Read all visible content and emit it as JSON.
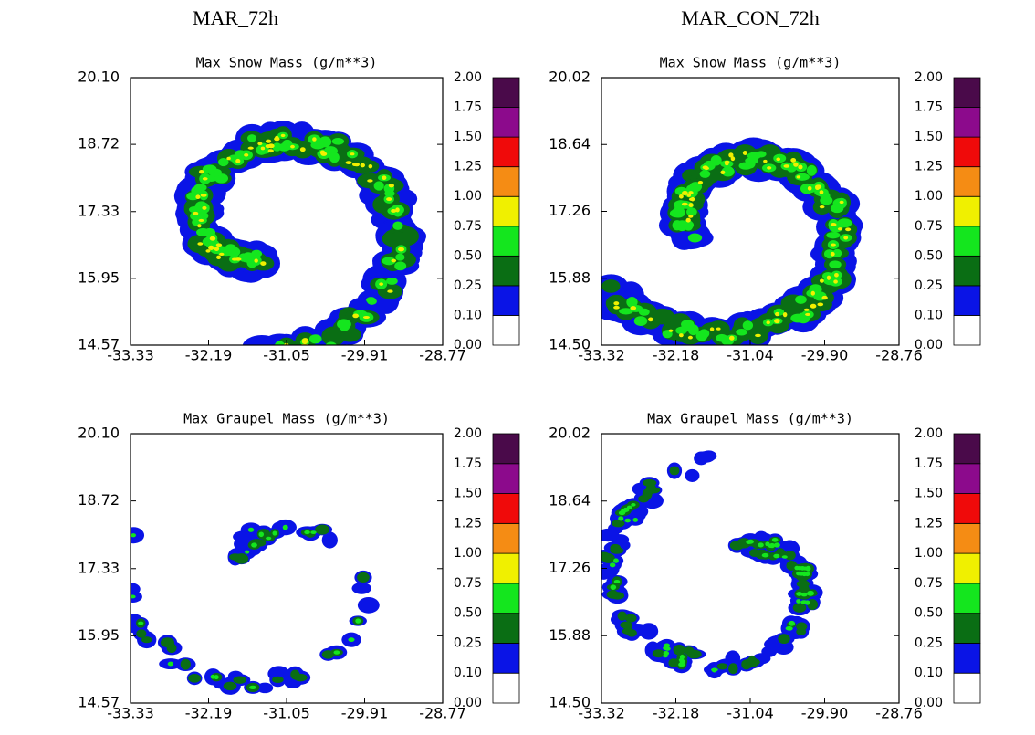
{
  "column_titles": [
    "MAR_72h",
    "MAR_CON_72h"
  ],
  "chart_data": [
    {
      "type": "contour",
      "title": "Max Snow Mass (g/m**3)",
      "xlim": [
        -33.33,
        -28.77
      ],
      "ylim": [
        14.57,
        20.1
      ],
      "xticks": [
        -33.33,
        -32.19,
        -31.05,
        -29.91,
        -28.77
      ],
      "yticks": [
        14.57,
        15.95,
        17.33,
        18.72,
        {
          "value": 20.1,
          "label": "20.10"
        }
      ],
      "colorbar": {
        "levels": [
          {
            "value": 0,
            "label": "0.00"
          },
          {
            "value": 0.1,
            "label": "0.10"
          },
          0.25,
          {
            "value": 0.5,
            "label": "0.50"
          },
          0.75,
          {
            "value": 1,
            "label": "1.00"
          },
          1.25,
          {
            "value": 1.5,
            "label": "1.50"
          },
          1.75,
          {
            "value": 2,
            "label": "2.00"
          }
        ],
        "colors": [
          "#ffffff",
          "#0a14e6",
          "#0a6e14",
          "#14e61e",
          "#f0f000",
          "#f58c14",
          "#f00a0a",
          "#8c0a8c",
          "#4a0a4a"
        ]
      }
    },
    {
      "type": "contour",
      "title": "Max Snow Mass (g/m**3)",
      "xlim": [
        -33.32,
        -28.76
      ],
      "ylim": [
        14.5,
        20.02
      ],
      "xticks": [
        -33.32,
        -32.18,
        -31.04,
        {
          "value": -29.9,
          "label": "-29.90"
        },
        -28.76
      ],
      "yticks": [
        {
          "value": 14.5,
          "label": "14.50"
        },
        15.88,
        17.26,
        18.64,
        20.02
      ],
      "colorbar": {
        "levels": [
          {
            "value": 0,
            "label": "0.00"
          },
          {
            "value": 0.1,
            "label": "0.10"
          },
          0.25,
          {
            "value": 0.5,
            "label": "0.50"
          },
          0.75,
          {
            "value": 1,
            "label": "1.00"
          },
          1.25,
          {
            "value": 1.5,
            "label": "1.50"
          },
          1.75,
          {
            "value": 2,
            "label": "2.00"
          }
        ],
        "colors": [
          "#ffffff",
          "#0a14e6",
          "#0a6e14",
          "#14e61e",
          "#f0f000",
          "#f58c14",
          "#f00a0a",
          "#8c0a8c",
          "#4a0a4a"
        ]
      }
    },
    {
      "type": "contour",
      "title": "Max Graupel Mass (g/m**3)",
      "xlim": [
        -33.33,
        -28.77
      ],
      "ylim": [
        14.57,
        20.1
      ],
      "xticks": [
        -33.33,
        -32.19,
        -31.05,
        -29.91,
        -28.77
      ],
      "yticks": [
        14.57,
        15.95,
        17.33,
        18.72,
        {
          "value": 20.1,
          "label": "20.10"
        }
      ],
      "colorbar": {
        "levels": [
          {
            "value": 0,
            "label": "0.00"
          },
          {
            "value": 0.1,
            "label": "0.10"
          },
          0.25,
          {
            "value": 0.5,
            "label": "0.50"
          },
          0.75,
          {
            "value": 1,
            "label": "1.00"
          },
          1.25,
          {
            "value": 1.5,
            "label": "1.50"
          },
          1.75,
          {
            "value": 2,
            "label": "2.00"
          }
        ],
        "colors": [
          "#ffffff",
          "#0a14e6",
          "#0a6e14",
          "#14e61e",
          "#f0f000",
          "#f58c14",
          "#f00a0a",
          "#8c0a8c",
          "#4a0a4a"
        ]
      }
    },
    {
      "type": "contour",
      "title": "Max Graupel Mass (g/m**3)",
      "xlim": [
        -33.32,
        -28.76
      ],
      "ylim": [
        14.5,
        20.02
      ],
      "xticks": [
        -33.32,
        -32.18,
        -31.04,
        {
          "value": -29.9,
          "label": "-29.90"
        },
        -28.76
      ],
      "yticks": [
        {
          "value": 14.5,
          "label": "14.50"
        },
        15.88,
        17.26,
        18.64,
        20.02
      ],
      "colorbar": {
        "levels": [
          {
            "value": 0,
            "label": "0.00"
          },
          {
            "value": 0.1,
            "label": "0.10"
          },
          0.25,
          {
            "value": 0.5,
            "label": "0.50"
          },
          0.75,
          {
            "value": 1,
            "label": "1.00"
          },
          1.25,
          {
            "value": 1.5,
            "label": "1.50"
          },
          1.75,
          {
            "value": 2,
            "label": "2.00"
          }
        ],
        "colors": [
          "#ffffff",
          "#0a14e6",
          "#0a6e14",
          "#14e61e",
          "#f0f000",
          "#f58c14",
          "#f00a0a",
          "#8c0a8c",
          "#4a0a4a"
        ]
      }
    }
  ]
}
